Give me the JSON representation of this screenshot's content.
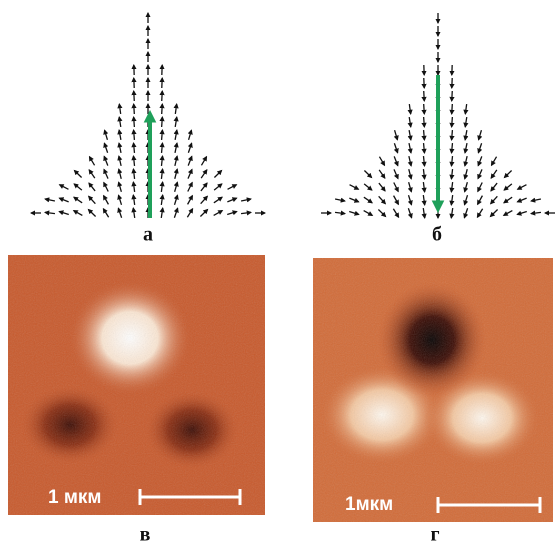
{
  "panels": [
    {
      "label": "а"
    },
    {
      "label": "б"
    },
    {
      "label": "в",
      "scale": "1 мкм"
    },
    {
      "label": "г",
      "scale": "1мкм"
    }
  ]
}
